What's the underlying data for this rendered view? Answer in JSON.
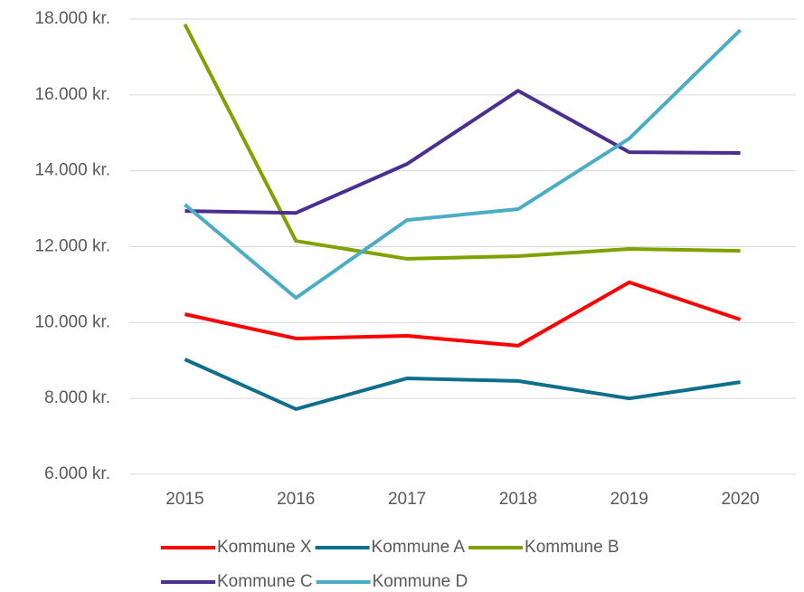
{
  "chart_data": {
    "type": "line",
    "categories": [
      "2015",
      "2016",
      "2017",
      "2018",
      "2019",
      "2020"
    ],
    "series": [
      {
        "name": "Kommune X",
        "color": "#ff0000",
        "values": [
          10220,
          9580,
          9650,
          9390,
          11060,
          10080
        ]
      },
      {
        "name": "Kommune A",
        "color": "#0e6f8c",
        "values": [
          9030,
          7720,
          8530,
          8460,
          8000,
          8430
        ]
      },
      {
        "name": "Kommune B",
        "color": "#7fa200",
        "values": [
          17860,
          12150,
          11680,
          11750,
          11940,
          11890
        ]
      },
      {
        "name": "Kommune C",
        "color": "#4a2f90",
        "values": [
          12940,
          12890,
          14180,
          16110,
          14490,
          14470
        ]
      },
      {
        "name": "Kommune D",
        "color": "#4bacc6",
        "values": [
          13110,
          10650,
          12700,
          12990,
          14850,
          17710
        ]
      }
    ],
    "ylim": [
      6000,
      18000
    ],
    "yticks": [
      {
        "value": 6000,
        "label": "6.000 kr."
      },
      {
        "value": 8000,
        "label": "8.000 kr."
      },
      {
        "value": 10000,
        "label": "10.000 kr."
      },
      {
        "value": 12000,
        "label": "12.000 kr."
      },
      {
        "value": 14000,
        "label": "14.000 kr."
      },
      {
        "value": 16000,
        "label": "16.000 kr."
      },
      {
        "value": 18000,
        "label": "18.000 kr."
      }
    ],
    "grid": true,
    "legend": "bottom"
  }
}
